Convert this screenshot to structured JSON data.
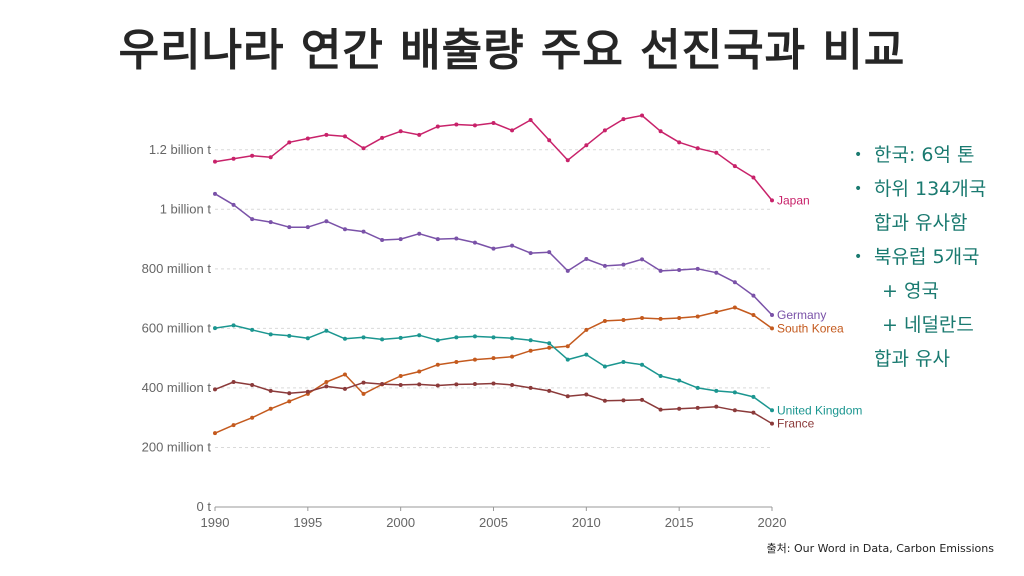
{
  "title": "우리나라 연간 배출량 주요 선진국과 비교",
  "notes": {
    "bullet1": "한국: 6억 톤",
    "bullet2_line1": "하위 134개국",
    "bullet2_line2": "합과 유사함",
    "bullet3_line1": "북유럽 5개국",
    "bullet3_line2": "+ 영국",
    "bullet3_line3": "+ 네덜란드",
    "bullet3_line4": "합과 유사"
  },
  "source": "출처: Our Word in Data, Carbon Emissions",
  "chart_data": {
    "type": "line",
    "x": [
      1990,
      1991,
      1992,
      1993,
      1994,
      1995,
      1996,
      1997,
      1998,
      1999,
      2000,
      2001,
      2002,
      2003,
      2004,
      2005,
      2006,
      2007,
      2008,
      2009,
      2010,
      2011,
      2012,
      2013,
      2014,
      2015,
      2016,
      2017,
      2018,
      2019,
      2020
    ],
    "xlim": [
      1990,
      2020
    ],
    "ylim": [
      0,
      1300000000
    ],
    "xticks": [
      "1990",
      "1995",
      "2000",
      "2005",
      "2010",
      "2015",
      "2020"
    ],
    "yticks": [
      {
        "value": 0,
        "label": "0 t"
      },
      {
        "value": 200000000,
        "label": "200 million t"
      },
      {
        "value": 400000000,
        "label": "400 million t"
      },
      {
        "value": 600000000,
        "label": "600 million t"
      },
      {
        "value": 800000000,
        "label": "800 million t"
      },
      {
        "value": 1000000000,
        "label": "1 billion t"
      },
      {
        "value": 1200000000,
        "label": "1.2 billion t"
      }
    ],
    "grid": true,
    "series": [
      {
        "name": "Japan",
        "color": "#c8226a",
        "values": [
          1160,
          1170,
          1180,
          1175,
          1225,
          1238,
          1250,
          1245,
          1205,
          1240,
          1262,
          1250,
          1278,
          1285,
          1282,
          1290,
          1265,
          1300,
          1232,
          1165,
          1215,
          1265,
          1303,
          1315,
          1262,
          1225,
          1205,
          1190,
          1145,
          1107,
          1030
        ]
      },
      {
        "name": "Germany",
        "color": "#7a52a8",
        "values": [
          1052,
          1015,
          967,
          957,
          940,
          940,
          960,
          933,
          925,
          897,
          900,
          918,
          900,
          902,
          888,
          868,
          878,
          853,
          856,
          793,
          833,
          810,
          814,
          832,
          793,
          796,
          800,
          787,
          755,
          710,
          645
        ]
      },
      {
        "name": "South Korea",
        "color": "#c45a1e",
        "values": [
          248,
          275,
          300,
          330,
          355,
          380,
          420,
          445,
          380,
          412,
          440,
          455,
          478,
          487,
          495,
          500,
          505,
          525,
          535,
          540,
          595,
          625,
          628,
          635,
          632,
          635,
          640,
          655,
          670,
          645,
          600
        ]
      },
      {
        "name": "United Kingdom",
        "color": "#1b9690",
        "values": [
          601,
          610,
          595,
          580,
          575,
          567,
          592,
          565,
          570,
          563,
          568,
          577,
          560,
          570,
          573,
          570,
          567,
          560,
          550,
          495,
          512,
          472,
          487,
          478,
          440,
          425,
          400,
          390,
          385,
          370,
          325
        ]
      },
      {
        "name": "France",
        "color": "#8b3a3a",
        "values": [
          395,
          420,
          410,
          390,
          382,
          387,
          405,
          397,
          418,
          413,
          410,
          412,
          408,
          412,
          413,
          415,
          410,
          400,
          390,
          372,
          378,
          357,
          358,
          360,
          327,
          330,
          333,
          337,
          325,
          317,
          280
        ]
      }
    ]
  }
}
